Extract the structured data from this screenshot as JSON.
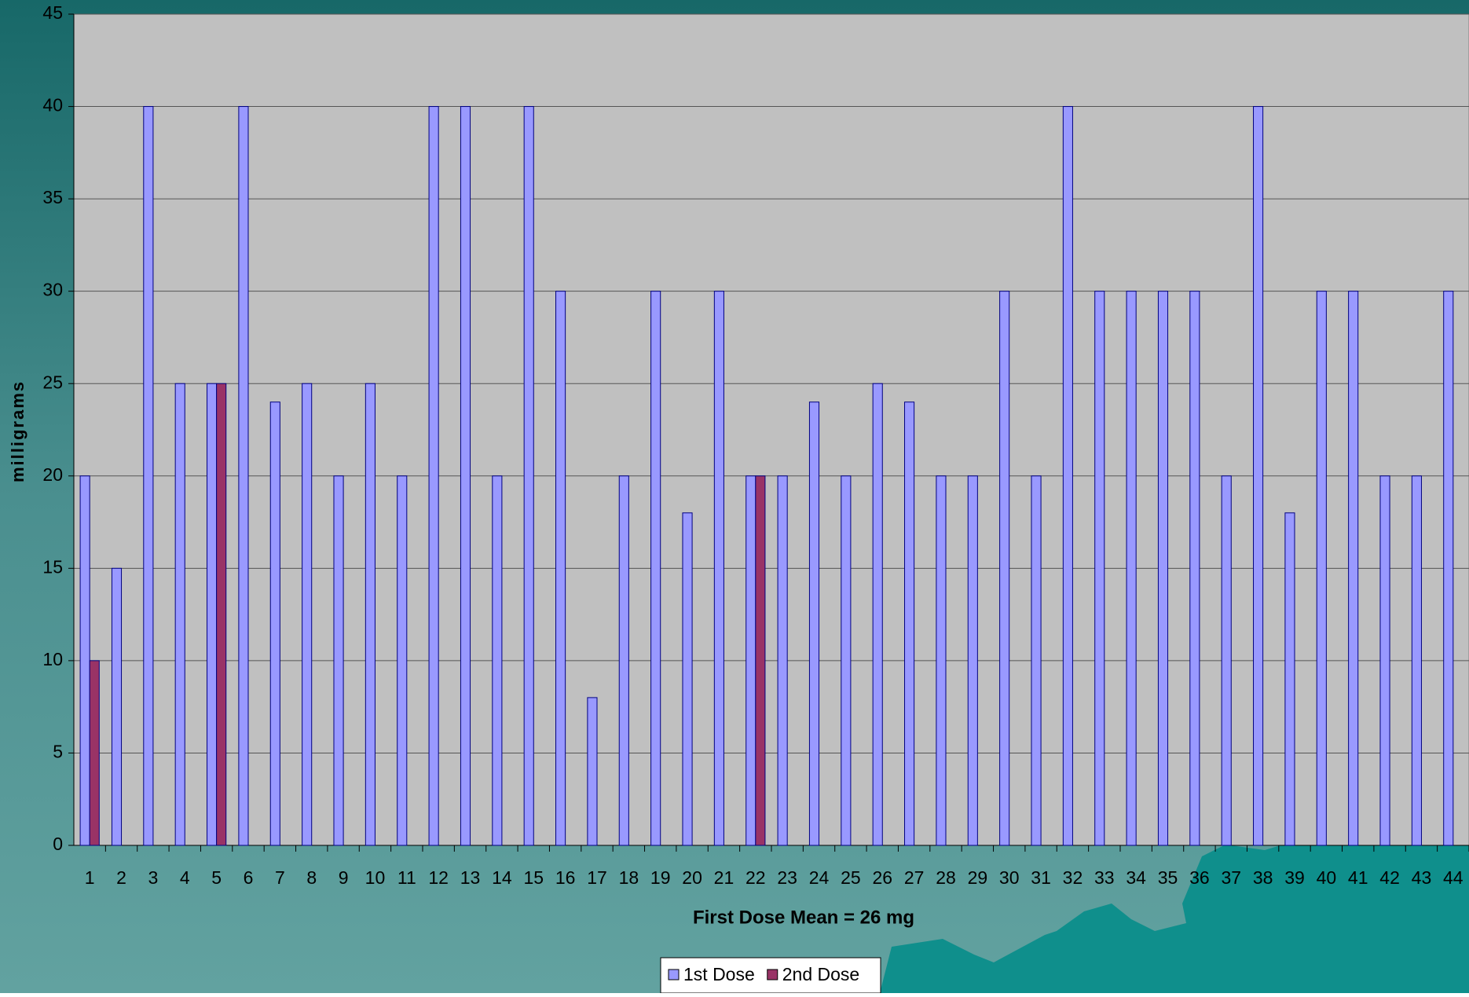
{
  "chart_data": {
    "type": "bar",
    "x_label": "First Dose Mean = 26 mg",
    "y_label": "milligrams",
    "categories": [
      "1",
      "2",
      "3",
      "4",
      "5",
      "6",
      "7",
      "8",
      "9",
      "10",
      "11",
      "12",
      "13",
      "14",
      "15",
      "16",
      "17",
      "18",
      "19",
      "20",
      "21",
      "22",
      "23",
      "24",
      "25",
      "26",
      "27",
      "28",
      "29",
      "30",
      "31",
      "32",
      "33",
      "34",
      "35",
      "36",
      "37",
      "38",
      "39",
      "40",
      "41",
      "42",
      "43",
      "44"
    ],
    "series": [
      {
        "name": "1st Dose",
        "color": "#9999ff",
        "values": [
          20,
          15,
          40,
          25,
          25,
          40,
          24,
          25,
          20,
          25,
          20,
          40,
          40,
          20,
          40,
          30,
          8,
          20,
          30,
          18,
          30,
          20,
          20,
          24,
          20,
          25,
          24,
          20,
          20,
          30,
          20,
          40,
          30,
          30,
          30,
          30,
          20,
          40,
          18,
          30,
          30,
          20,
          20,
          30
        ]
      },
      {
        "name": "2nd Dose",
        "color": "#993366",
        "values": [
          10,
          null,
          null,
          null,
          25,
          null,
          null,
          null,
          null,
          null,
          null,
          null,
          null,
          null,
          null,
          null,
          null,
          null,
          null,
          null,
          null,
          20,
          null,
          null,
          null,
          null,
          null,
          null,
          null,
          null,
          null,
          null,
          null,
          null,
          null,
          null,
          null,
          null,
          null,
          null,
          null,
          null,
          null,
          null
        ]
      }
    ],
    "ylim": [
      0,
      45
    ],
    "yticks": [
      0,
      5,
      10,
      15,
      20,
      25,
      30,
      35,
      40,
      45
    ],
    "grid": true,
    "legend": "bottom"
  }
}
